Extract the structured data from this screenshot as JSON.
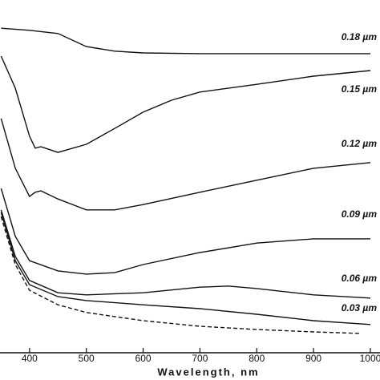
{
  "chart_data": {
    "type": "line",
    "xlabel": "Wavelength, nm",
    "xlim": [
      348,
      1017
    ],
    "xticks": [
      400,
      500,
      600,
      700,
      800,
      900,
      1000
    ],
    "ylim": [
      0,
      100
    ],
    "series": [
      {
        "name": "0.18 µm",
        "color": "#111111",
        "x": [
          350,
          400,
          450,
          500,
          550,
          600,
          700,
          800,
          900,
          1000
        ],
        "values": [
          92.0,
          91.4,
          90.5,
          86.8,
          85.5,
          85.0,
          84.8,
          84.8,
          84.8,
          84.8
        ]
      },
      {
        "name": "0.15 µm",
        "color": "#111111",
        "x": [
          350,
          375,
          400,
          410,
          420,
          450,
          500,
          550,
          600,
          650,
          700,
          800,
          900,
          1000
        ],
        "values": [
          84.1,
          75.0,
          61.4,
          58.0,
          58.4,
          56.8,
          59.1,
          63.6,
          68.2,
          71.6,
          73.9,
          76.1,
          78.4,
          80.0
        ]
      },
      {
        "name": "0.12 µm",
        "color": "#111111",
        "x": [
          350,
          375,
          400,
          410,
          420,
          450,
          500,
          550,
          600,
          700,
          800,
          900,
          1000
        ],
        "values": [
          66.4,
          52.3,
          44.3,
          45.5,
          45.9,
          43.6,
          40.5,
          40.5,
          42.0,
          45.5,
          48.9,
          52.3,
          53.9
        ]
      },
      {
        "name": "0.09 µm",
        "color": "#111111",
        "x": [
          350,
          375,
          400,
          450,
          500,
          550,
          600,
          700,
          800,
          900,
          1000
        ],
        "values": [
          46.6,
          33.0,
          26.1,
          23.2,
          22.3,
          22.7,
          25.0,
          28.4,
          31.1,
          32.3,
          32.3
        ]
      },
      {
        "name": "0.06 µm",
        "color": "#111111",
        "x": [
          350,
          375,
          400,
          450,
          500,
          600,
          700,
          750,
          800,
          900,
          1000
        ],
        "values": [
          40.5,
          27.3,
          20.5,
          17.0,
          16.4,
          17.0,
          18.6,
          18.9,
          18.2,
          16.4,
          15.5
        ]
      },
      {
        "name": "0.03 µm",
        "color": "#111111",
        "x": [
          350,
          375,
          400,
          450,
          500,
          600,
          700,
          800,
          900,
          1000
        ],
        "values": [
          39.8,
          26.1,
          19.3,
          15.9,
          14.8,
          13.6,
          12.5,
          10.9,
          9.1,
          8.0
        ]
      },
      {
        "color": "#111111",
        "dashed": true,
        "x": [
          350,
          375,
          400,
          450,
          500,
          600,
          700,
          800,
          900,
          980
        ],
        "values": [
          38.6,
          25.0,
          17.7,
          13.6,
          11.4,
          9.1,
          7.5,
          6.6,
          5.9,
          5.5
        ]
      }
    ]
  }
}
